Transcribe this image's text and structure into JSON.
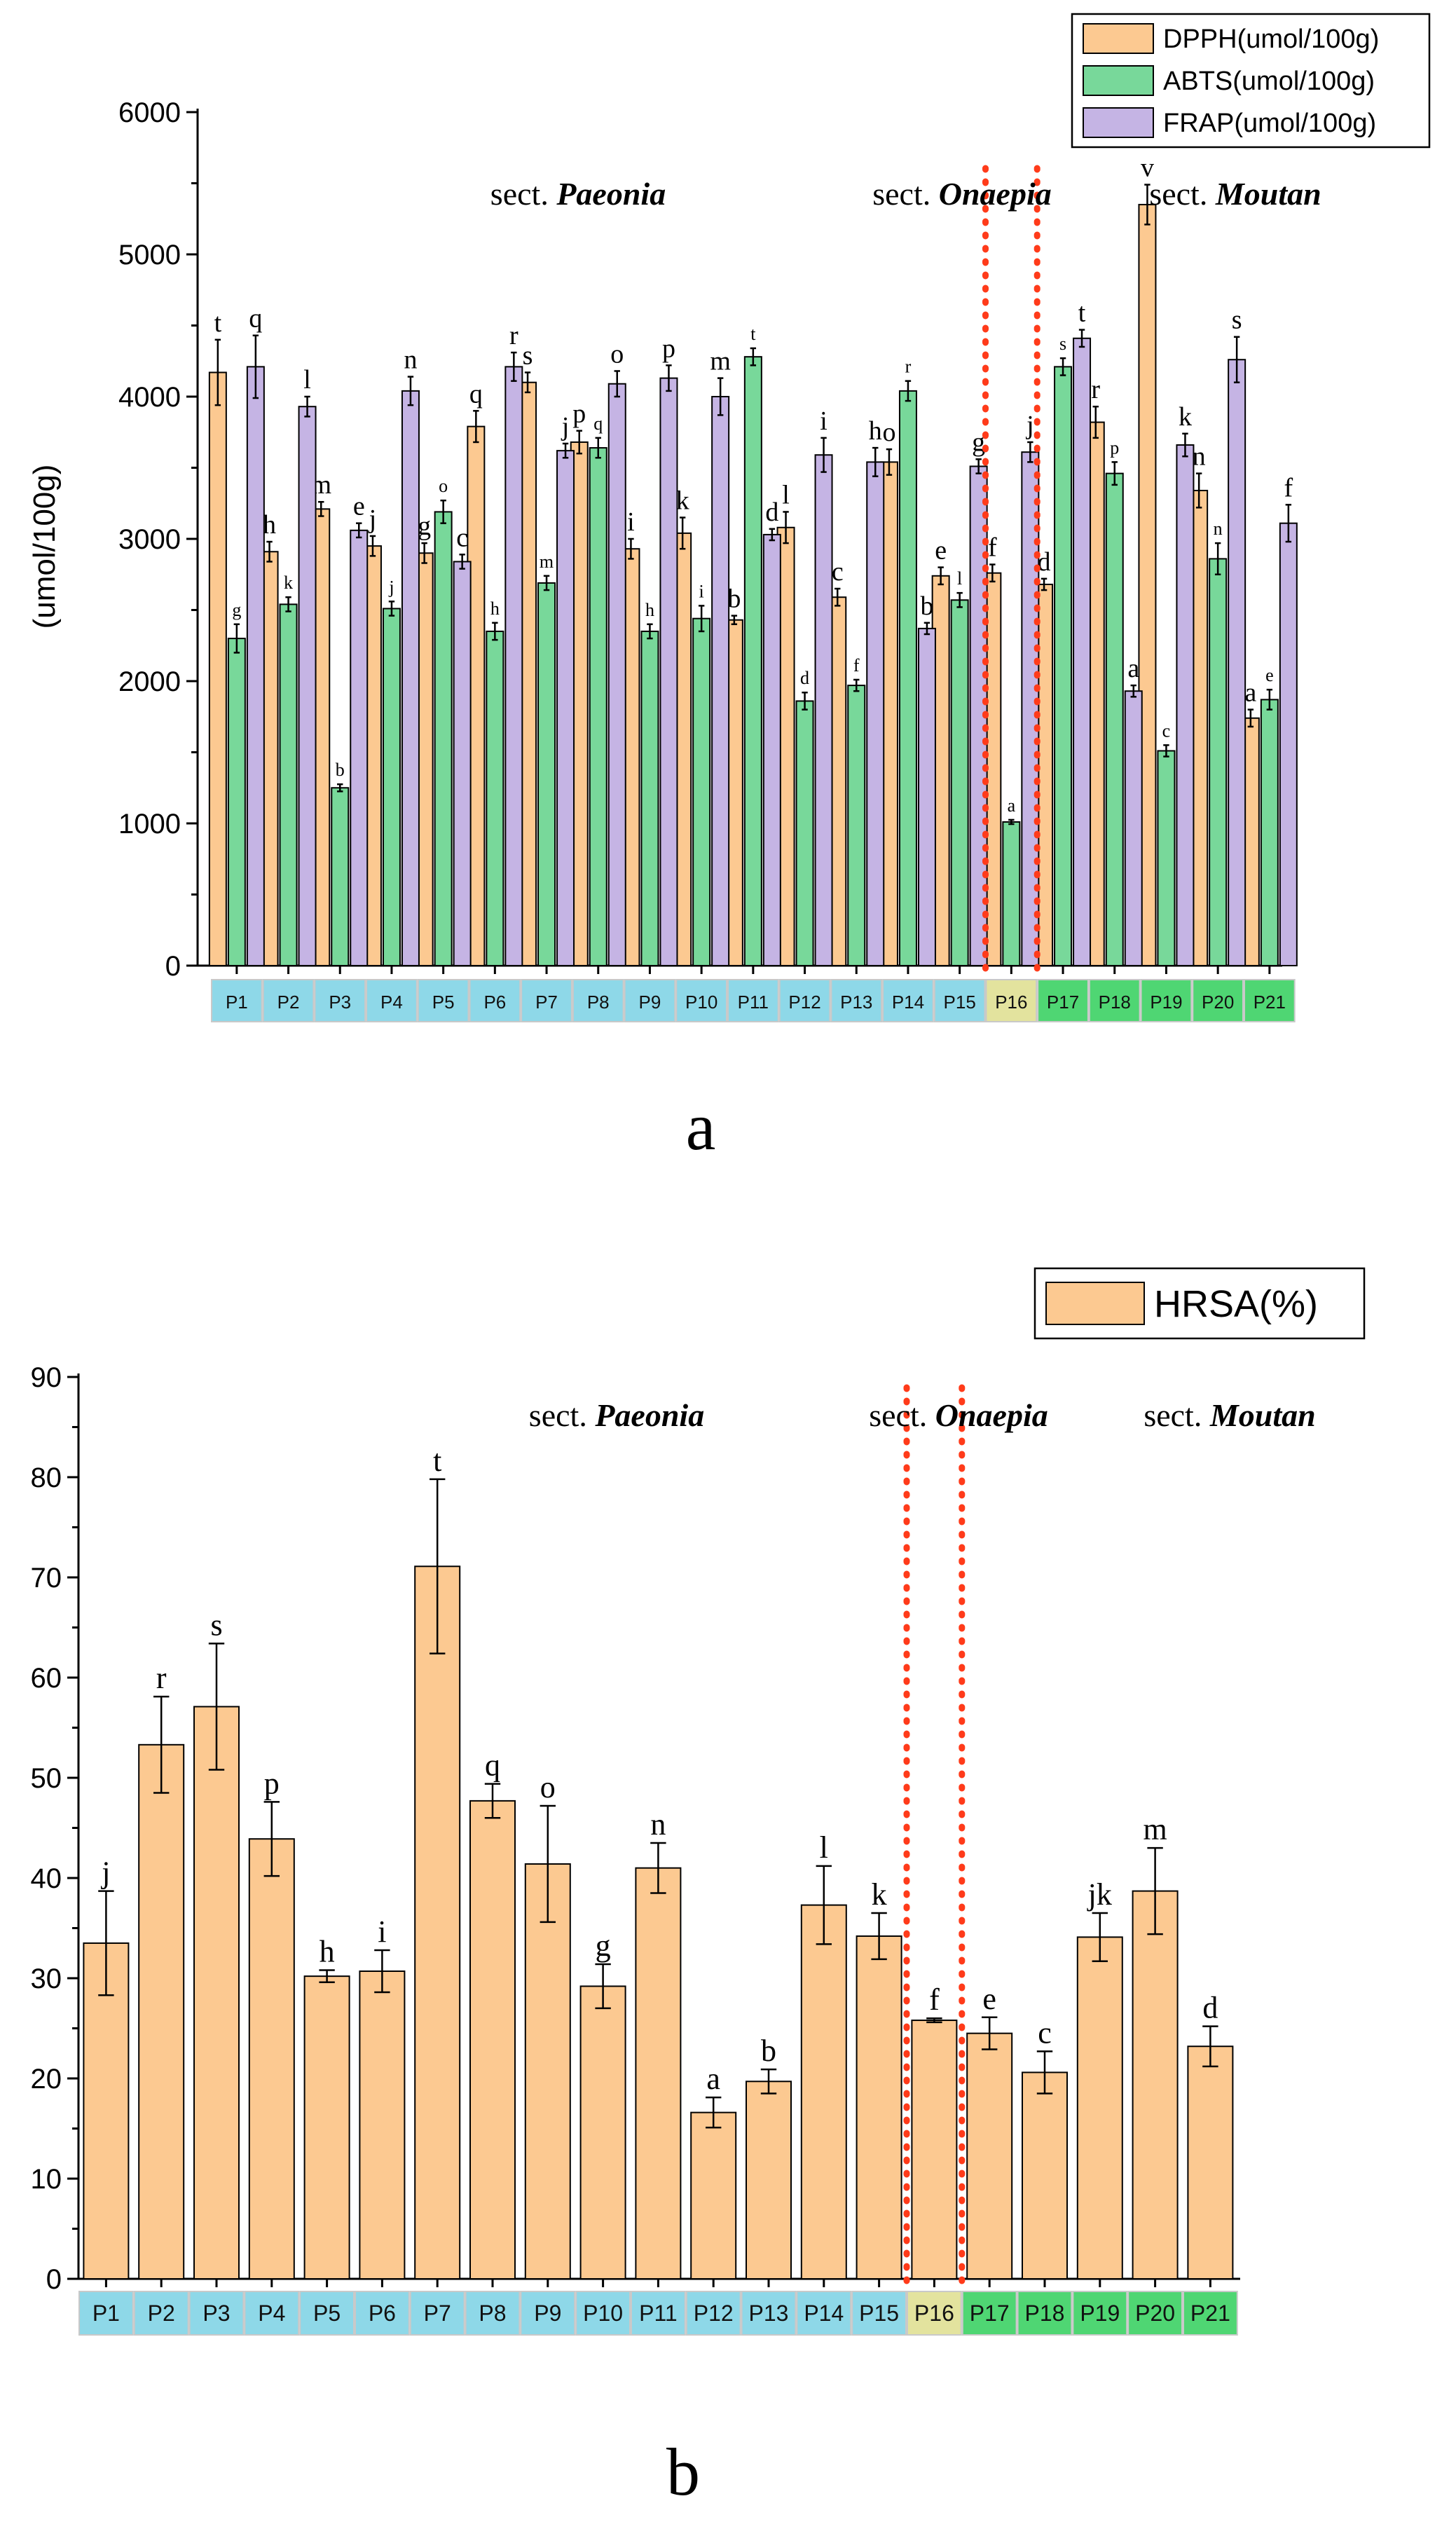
{
  "chart_data": [
    {
      "id": "a",
      "type": "bar",
      "panel_label": "a",
      "ylabel": "(umol/100g)",
      "ylim": [
        0,
        6000
      ],
      "yticks": [
        0,
        1000,
        2000,
        3000,
        4000,
        5000,
        6000
      ],
      "categories": [
        "P1",
        "P2",
        "P3",
        "P4",
        "P5",
        "P6",
        "P7",
        "P8",
        "P9",
        "P10",
        "P11",
        "P12",
        "P13",
        "P14",
        "P15",
        "P16",
        "P17",
        "P18",
        "P19",
        "P20",
        "P21"
      ],
      "series": [
        {
          "name": "DPPH(umol/100g)",
          "color": "#fcc991",
          "values": [
            4170,
            2910,
            3210,
            2950,
            2900,
            3790,
            4100,
            3680,
            2930,
            3040,
            2430,
            3080,
            2590,
            3540,
            2740,
            2760,
            2680,
            3820,
            5350,
            3340,
            1740
          ],
          "errors": [
            230,
            70,
            50,
            70,
            70,
            110,
            70,
            80,
            70,
            110,
            30,
            110,
            60,
            90,
            60,
            60,
            40,
            110,
            140,
            120,
            60
          ],
          "letters": [
            "t",
            "h",
            "m",
            "j",
            "g",
            "q",
            "s",
            "p",
            "i",
            "k",
            "b",
            "l",
            "c",
            "o",
            "e",
            "f",
            "d",
            "r",
            "v",
            "n",
            "a"
          ]
        },
        {
          "name": "ABTS(umol/100g)",
          "color": "#78d89a",
          "values": [
            2300,
            2540,
            1250,
            2510,
            3190,
            2350,
            2690,
            3640,
            2350,
            2440,
            4280,
            1860,
            1970,
            4040,
            2570,
            1010,
            4210,
            3460,
            1510,
            2860,
            1870
          ],
          "errors": [
            100,
            50,
            25,
            50,
            80,
            60,
            50,
            70,
            50,
            90,
            60,
            60,
            40,
            70,
            50,
            15,
            60,
            80,
            40,
            110,
            70
          ],
          "letters": [
            "g",
            "k",
            "b",
            "j",
            "o",
            "h",
            "m",
            "q",
            "h",
            "i",
            "t",
            "d",
            "f",
            "r",
            "l",
            "a",
            "s",
            "p",
            "c",
            "n",
            "e"
          ]
        },
        {
          "name": "FRAP(umol/100g)",
          "color": "#c5b4e4",
          "values": [
            4210,
            3930,
            3060,
            4040,
            2840,
            4210,
            3620,
            4090,
            4130,
            4000,
            3030,
            3590,
            3540,
            2370,
            3510,
            3610,
            4410,
            1930,
            3660,
            4260,
            3110
          ],
          "errors": [
            220,
            70,
            50,
            100,
            50,
            100,
            50,
            90,
            90,
            130,
            40,
            120,
            100,
            40,
            50,
            70,
            60,
            40,
            80,
            160,
            130
          ],
          "letters": [
            "q",
            "l",
            "e",
            "n",
            "c",
            "r",
            "j",
            "o",
            "p",
            "m",
            "d",
            "i",
            "h",
            "b",
            "g",
            "j",
            "t",
            "a",
            "k",
            "s",
            "f"
          ]
        }
      ],
      "sections": [
        {
          "label": "sect.",
          "name": "Paeonia"
        },
        {
          "label": "sect.",
          "name": "Onaepia"
        },
        {
          "label": "sect.",
          "name": "Moutan"
        }
      ],
      "group_colors": {
        "Paeonia": "#8ed8e8",
        "Onaepia": "#e3e39e",
        "Moutan": "#4fd673"
      },
      "category_groups": [
        "Paeonia",
        "Paeonia",
        "Paeonia",
        "Paeonia",
        "Paeonia",
        "Paeonia",
        "Paeonia",
        "Paeonia",
        "Paeonia",
        "Paeonia",
        "Paeonia",
        "Paeonia",
        "Paeonia",
        "Paeonia",
        "Paeonia",
        "Onaepia",
        "Moutan",
        "Moutan",
        "Moutan",
        "Moutan",
        "Moutan"
      ],
      "legend_position": "top-right"
    },
    {
      "id": "b",
      "type": "bar",
      "panel_label": "b",
      "ylabel": "",
      "ylim": [
        0,
        90
      ],
      "yticks": [
        0,
        10,
        20,
        30,
        40,
        50,
        60,
        70,
        80,
        90
      ],
      "categories": [
        "P1",
        "P2",
        "P3",
        "P4",
        "P5",
        "P6",
        "P7",
        "P8",
        "P9",
        "P10",
        "P11",
        "P12",
        "P13",
        "P14",
        "P15",
        "P16",
        "P17",
        "P18",
        "P19",
        "P20",
        "P21"
      ],
      "series": [
        {
          "name": "HRSA(%)",
          "color": "#fcc991",
          "values": [
            33.5,
            53.3,
            57.1,
            43.9,
            30.2,
            30.7,
            71.1,
            47.7,
            41.4,
            29.2,
            41.0,
            16.6,
            19.7,
            37.3,
            34.2,
            25.8,
            24.5,
            20.6,
            34.1,
            38.7,
            23.2
          ],
          "errors": [
            5.2,
            4.8,
            6.3,
            3.7,
            0.6,
            2.1,
            8.7,
            1.7,
            5.8,
            2.2,
            2.5,
            1.5,
            1.2,
            3.9,
            2.3,
            0.2,
            1.6,
            2.1,
            2.4,
            4.3,
            2.0
          ],
          "letters": [
            "j",
            "r",
            "s",
            "p",
            "h",
            "i",
            "t",
            "q",
            "o",
            "g",
            "n",
            "a",
            "b",
            "l",
            "k",
            "f",
            "e",
            "c",
            "jk",
            "m",
            "d"
          ]
        }
      ],
      "sections": [
        {
          "label": "sect.",
          "name": "Paeonia"
        },
        {
          "label": "sect.",
          "name": "Onaepia"
        },
        {
          "label": "sect.",
          "name": "Moutan"
        }
      ],
      "group_colors": {
        "Paeonia": "#8ed8e8",
        "Onaepia": "#e3e39e",
        "Moutan": "#4fd673"
      },
      "category_groups": [
        "Paeonia",
        "Paeonia",
        "Paeonia",
        "Paeonia",
        "Paeonia",
        "Paeonia",
        "Paeonia",
        "Paeonia",
        "Paeonia",
        "Paeonia",
        "Paeonia",
        "Paeonia",
        "Paeonia",
        "Paeonia",
        "Paeonia",
        "Onaepia",
        "Moutan",
        "Moutan",
        "Moutan",
        "Moutan",
        "Moutan"
      ],
      "legend_position": "top-right"
    }
  ]
}
